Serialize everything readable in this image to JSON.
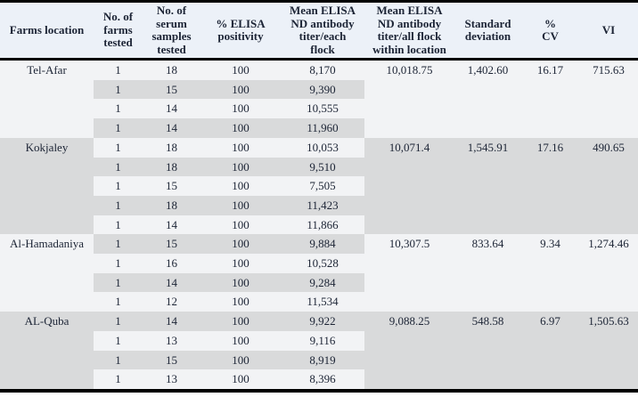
{
  "table": {
    "colors": {
      "header_bg": "#ecf1f8",
      "row_light": "#f2f3f5",
      "row_gray": "#d9dadb",
      "rule": "#000000",
      "text": "#1c2435"
    },
    "columns": [
      {
        "label": "Farms location"
      },
      {
        "label": "No. of\nfarms\ntested"
      },
      {
        "label": "No. of\nserum\nsamples\ntested"
      },
      {
        "label": "% ELISA\npositivity"
      },
      {
        "label": "Mean ELISA\nND antibody\ntiter/each\nflock"
      },
      {
        "label": "Mean ELISA\nND antibody\ntiter/all flock\nwithin location"
      },
      {
        "label": "Standard\ndeviation"
      },
      {
        "label": "%\nCV"
      },
      {
        "label": "VI"
      }
    ],
    "groups": [
      {
        "location": "Tel-Afar",
        "rows": [
          {
            "farms": "1",
            "serum": "18",
            "positivity": "100",
            "titer": "8,170"
          },
          {
            "farms": "1",
            "serum": "15",
            "positivity": "100",
            "titer": "9,390"
          },
          {
            "farms": "1",
            "serum": "14",
            "positivity": "100",
            "titer": "10,555"
          },
          {
            "farms": "1",
            "serum": "14",
            "positivity": "100",
            "titer": "11,960"
          }
        ],
        "mean_all": "10,018.75",
        "sd": "1,402.60",
        "cv": "16.17",
        "vi": "715.63"
      },
      {
        "location": "Kokjaley",
        "rows": [
          {
            "farms": "1",
            "serum": "18",
            "positivity": "100",
            "titer": "10,053"
          },
          {
            "farms": "1",
            "serum": "18",
            "positivity": "100",
            "titer": "9,510"
          },
          {
            "farms": "1",
            "serum": "15",
            "positivity": "100",
            "titer": "7,505"
          },
          {
            "farms": "1",
            "serum": "18",
            "positivity": "100",
            "titer": "11,423"
          },
          {
            "farms": "1",
            "serum": "14",
            "positivity": "100",
            "titer": "11,866"
          }
        ],
        "mean_all": "10,071.4",
        "sd": "1,545.91",
        "cv": "17.16",
        "vi": "490.65"
      },
      {
        "location": "Al-Hamadaniya",
        "rows": [
          {
            "farms": "1",
            "serum": "15",
            "positivity": "100",
            "titer": "9,884"
          },
          {
            "farms": "1",
            "serum": "16",
            "positivity": "100",
            "titer": "10,528"
          },
          {
            "farms": "1",
            "serum": "14",
            "positivity": "100",
            "titer": "9,284"
          },
          {
            "farms": "1",
            "serum": "12",
            "positivity": "100",
            "titer": "11,534"
          }
        ],
        "mean_all": "10,307.5",
        "sd": "833.64",
        "cv": "9.34",
        "vi": "1,274.46"
      },
      {
        "location": "AL-Quba",
        "rows": [
          {
            "farms": "1",
            "serum": "14",
            "positivity": "100",
            "titer": "9,922"
          },
          {
            "farms": "1",
            "serum": "13",
            "positivity": "100",
            "titer": "9,116"
          },
          {
            "farms": "1",
            "serum": "15",
            "positivity": "100",
            "titer": "8,919"
          },
          {
            "farms": "1",
            "serum": "13",
            "positivity": "100",
            "titer": "8,396"
          }
        ],
        "mean_all": "9,088.25",
        "sd": "548.58",
        "cv": "6.97",
        "vi": "1,505.63"
      }
    ]
  }
}
